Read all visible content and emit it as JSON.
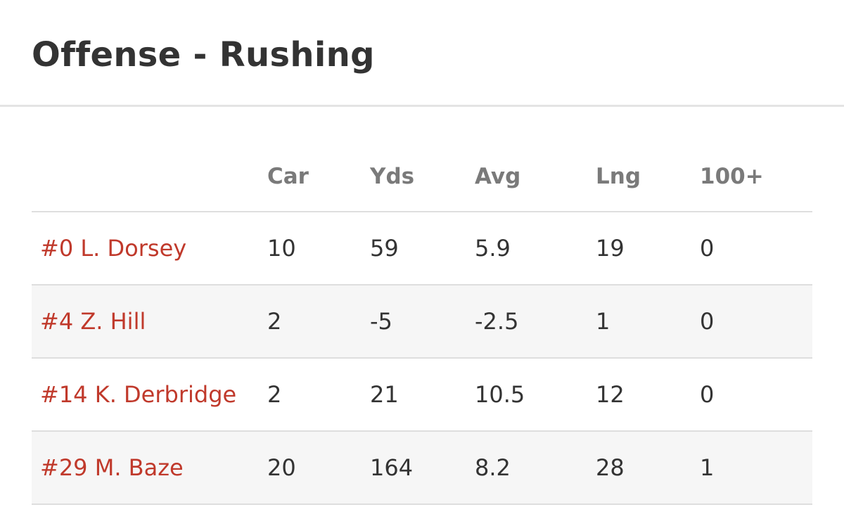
{
  "page": {
    "title": "Offense - Rushing"
  },
  "table": {
    "columns": [
      "",
      "Car",
      "Yds",
      "Avg",
      "Lng",
      "100+"
    ],
    "rows": [
      {
        "player": "#0 L. Dorsey",
        "car": "10",
        "yds": "59",
        "avg": "5.9",
        "lng": "19",
        "hundred_plus": "0"
      },
      {
        "player": "#4 Z. Hill",
        "car": "2",
        "yds": "-5",
        "avg": "-2.5",
        "lng": "1",
        "hundred_plus": "0"
      },
      {
        "player": "#14 K. Derbridge",
        "car": "2",
        "yds": "21",
        "avg": "10.5",
        "lng": "12",
        "hundred_plus": "0"
      },
      {
        "player": "#29 M. Baze",
        "car": "20",
        "yds": "164",
        "avg": "8.2",
        "lng": "28",
        "hundred_plus": "1"
      }
    ]
  },
  "colors": {
    "player_link": "#c0392b",
    "header_text": "#7a7a7a",
    "body_text": "#333333",
    "alt_row_bg": "#f6f6f6",
    "divider": "#dedede"
  }
}
